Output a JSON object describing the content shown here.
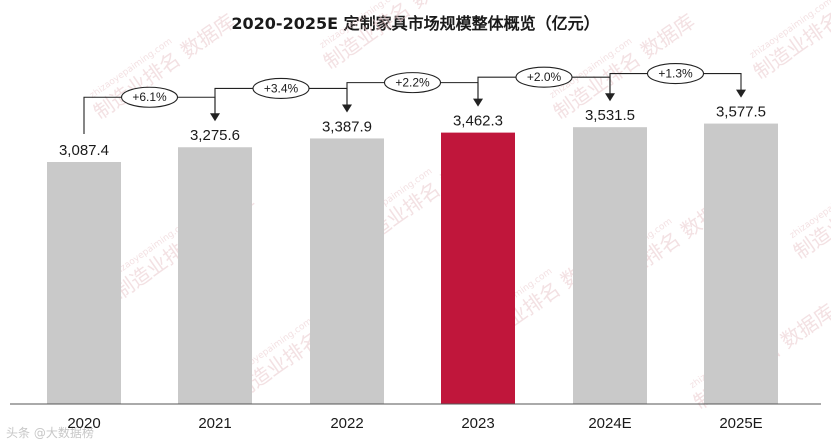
{
  "chart_data": {
    "type": "bar",
    "title": "2020-2025E 定制家具市场规模整体概览（亿元）",
    "categories": [
      "2020",
      "2021",
      "2022",
      "2023",
      "2024E",
      "2025E"
    ],
    "values": [
      3087.4,
      3275.6,
      3387.9,
      3462.3,
      3531.5,
      3577.5
    ],
    "value_labels": [
      "3,087.4",
      "3,275.6",
      "3,387.9",
      "3,462.3",
      "3,531.5",
      "3,577.5"
    ],
    "growth_labels": [
      "+6.1%",
      "+3.4%",
      "+2.2%",
      "+2.0%",
      "+1.3%"
    ],
    "highlight_index": 3,
    "colors": {
      "bar": "#c9c9c9",
      "highlight": "#c0163b",
      "axis": "#555555",
      "arrow": "#222222"
    },
    "grid": false,
    "legend": "none"
  },
  "watermark": {
    "text": "制造业排名 数据库",
    "url": "zhizaoyepaiming.com",
    "corner_text": "头条 @大数据榜"
  }
}
